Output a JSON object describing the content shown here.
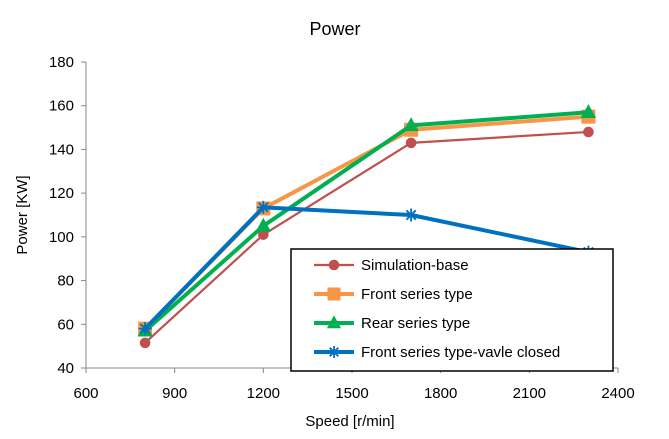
{
  "chart_data": {
    "type": "line",
    "title": "Power",
    "xlabel": "Speed [r/min]",
    "ylabel": "Power [KW]",
    "xlim": [
      600,
      2400
    ],
    "ylim": [
      40,
      180
    ],
    "xticks": [
      600,
      900,
      1200,
      1500,
      1800,
      2100,
      2400
    ],
    "yticks": [
      40,
      60,
      80,
      100,
      120,
      140,
      160,
      180
    ],
    "grid": false,
    "legend_position": "lower-right",
    "series": [
      {
        "name": "Simulation-base",
        "marker": "circle",
        "color": "#C0504D",
        "x": [
          800,
          1200,
          1700,
          2300
        ],
        "y": [
          51.5,
          101,
          143,
          148
        ]
      },
      {
        "name": "Front series type",
        "marker": "square",
        "color": "#F79646",
        "x": [
          800,
          1200,
          1700,
          2300
        ],
        "y": [
          58,
          113,
          149,
          155
        ]
      },
      {
        "name": "Rear series type",
        "marker": "triangle",
        "color": "#00B050",
        "x": [
          800,
          1200,
          1700,
          2300
        ],
        "y": [
          57,
          105,
          151,
          157
        ]
      },
      {
        "name": "Front series type-vavle closed",
        "marker": "asterisk",
        "color": "#0070C0",
        "x": [
          800,
          1200,
          1700,
          2300
        ],
        "y": [
          58,
          113.5,
          110,
          93
        ]
      }
    ]
  }
}
